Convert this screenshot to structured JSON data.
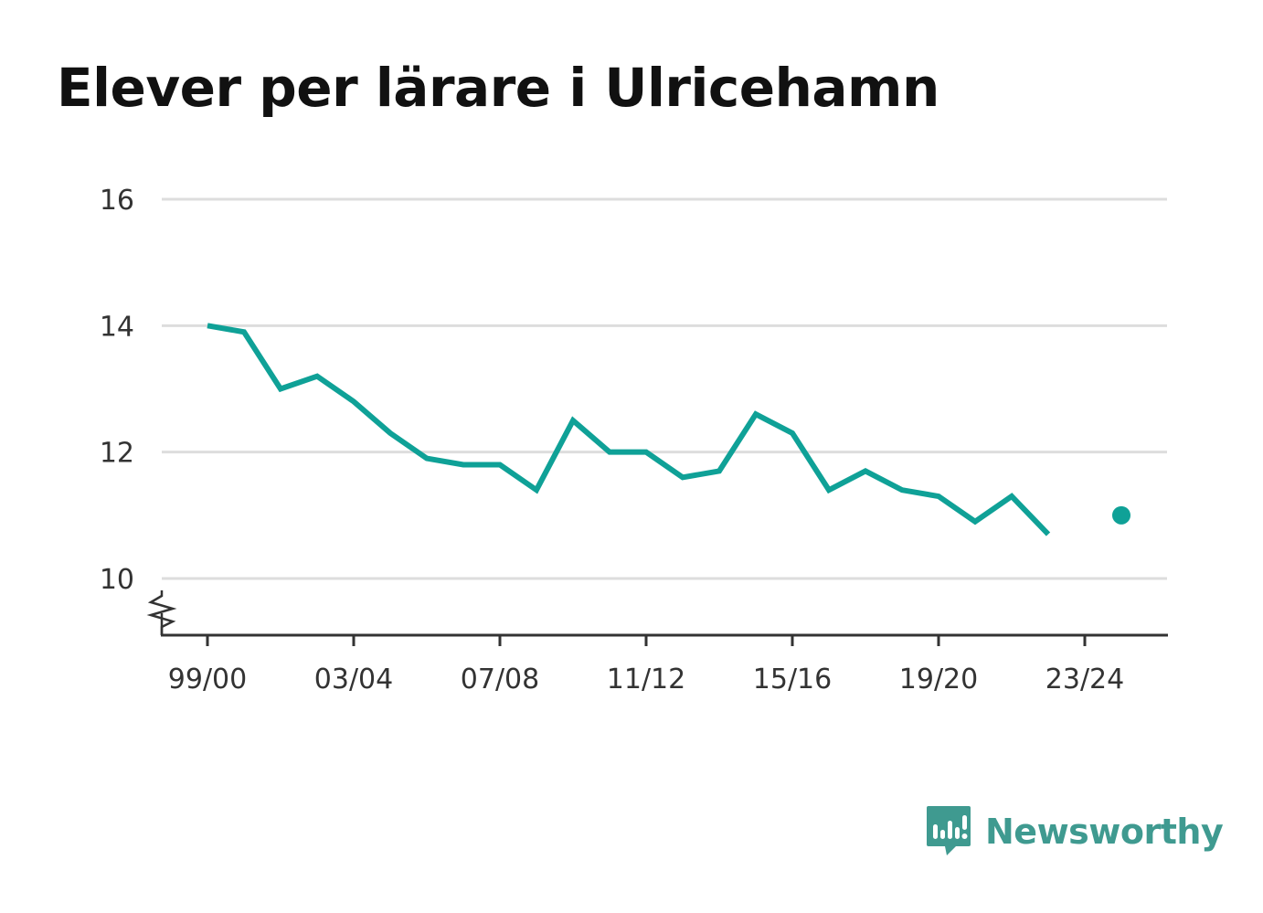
{
  "title": "Elever per lärare i Ulricehamn",
  "brand": {
    "name": "Newsworthy",
    "icon": "newsworthy-logo-icon"
  },
  "colors": {
    "line": "#0fa197",
    "grid": "#dddddd",
    "axis": "#333333",
    "brand": "#3f9a90"
  },
  "chart_data": {
    "type": "line",
    "title": "Elever per lärare i Ulricehamn",
    "xlabel": "",
    "ylabel": "",
    "ylim": [
      9.1,
      16
    ],
    "yticks": [
      10,
      12,
      14,
      16
    ],
    "y_axis_break": true,
    "grid": true,
    "categories": [
      "99/00",
      "00/01",
      "01/02",
      "02/03",
      "03/04",
      "04/05",
      "05/06",
      "06/07",
      "07/08",
      "08/09",
      "09/10",
      "10/11",
      "11/12",
      "12/13",
      "13/14",
      "14/15",
      "15/16",
      "16/17",
      "17/18",
      "18/19",
      "19/20",
      "20/21",
      "21/22",
      "22/23",
      "23/24",
      "24/25"
    ],
    "xtick_labels": [
      "99/00",
      "03/04",
      "07/08",
      "11/12",
      "15/16",
      "19/20",
      "23/24"
    ],
    "series": [
      {
        "values": [
          14.0,
          13.9,
          13.0,
          13.2,
          12.8,
          12.3,
          11.9,
          11.8,
          11.8,
          11.4,
          12.5,
          12.0,
          12.0,
          11.6,
          11.7,
          12.6,
          12.3,
          11.4,
          11.7,
          11.4,
          11.3,
          10.9,
          11.3,
          10.7,
          null,
          11.0
        ]
      }
    ]
  }
}
